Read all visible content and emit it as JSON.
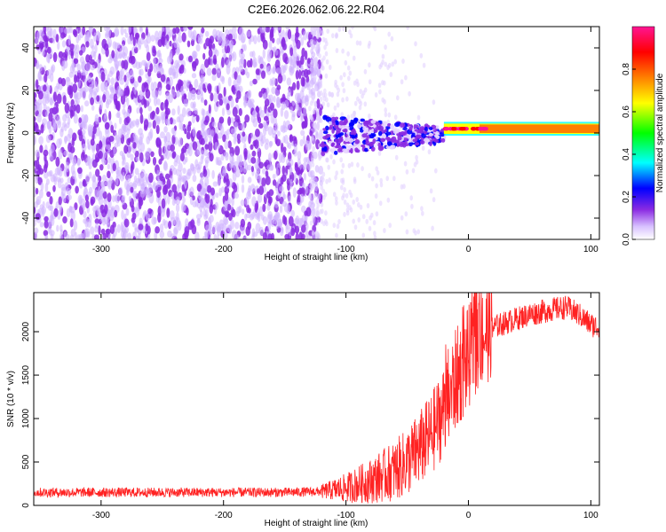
{
  "title": "C2E6.2026.062.06.22.R04",
  "chart_data": [
    {
      "type": "heatmap",
      "xlabel": "Height of straight line (km)",
      "ylabel": "Frequency (Hz)",
      "xlim": [
        -355,
        107
      ],
      "ylim": [
        -50,
        50
      ],
      "x_ticks": [
        -300,
        -200,
        -100,
        0,
        100
      ],
      "y_ticks": [
        -40,
        -20,
        0,
        20,
        40
      ],
      "colorbar": {
        "label": "Normalized spectral amplitude",
        "range": [
          0,
          1
        ],
        "ticks": [
          "0.0",
          "0.2",
          "0.4",
          "0.6",
          "0.8"
        ],
        "colormap": "rainbow",
        "colors": [
          "#ffffff",
          "#e8d6ff",
          "#8a2be2",
          "#0000ff",
          "#00ffff",
          "#00ff00",
          "#ffff00",
          "#ff8000",
          "#ff0000",
          "#ff1493"
        ]
      },
      "features": [
        {
          "region": "noise",
          "x": [
            -355,
            -120
          ],
          "y": [
            -50,
            50
          ],
          "amplitude": [
            0.05,
            0.15
          ]
        },
        {
          "region": "transition",
          "x": [
            -120,
            -20
          ],
          "y": [
            -10,
            10
          ],
          "amplitude": [
            0.1,
            0.35
          ]
        },
        {
          "region": "signal",
          "x": [
            -20,
            107
          ],
          "y": [
            0,
            4
          ],
          "amplitude": [
            0.6,
            1.0
          ]
        }
      ]
    },
    {
      "type": "line",
      "xlabel": "Height of straight line (km)",
      "ylabel": "SNR (10 * v/v)",
      "xlim": [
        -355,
        107
      ],
      "ylim": [
        0,
        2450
      ],
      "x_ticks": [
        -300,
        -200,
        -100,
        0,
        100
      ],
      "y_ticks": [
        0,
        500,
        1000,
        1500,
        2000
      ],
      "color": "#ff2222",
      "series": [
        {
          "x": [
            -355,
            -300,
            -250,
            -200,
            -150,
            -120,
            -100,
            -80,
            -60,
            -50,
            -40,
            -30,
            -20,
            -10,
            0,
            5,
            10,
            20,
            30,
            40,
            50,
            60,
            70,
            80,
            90,
            100,
            107
          ],
          "values": [
            150,
            150,
            150,
            150,
            150,
            160,
            200,
            280,
            400,
            500,
            650,
            820,
            1100,
            1450,
            1700,
            1850,
            1950,
            2050,
            2100,
            2150,
            2200,
            2230,
            2260,
            2280,
            2200,
            2080,
            2050
          ]
        }
      ]
    }
  ]
}
